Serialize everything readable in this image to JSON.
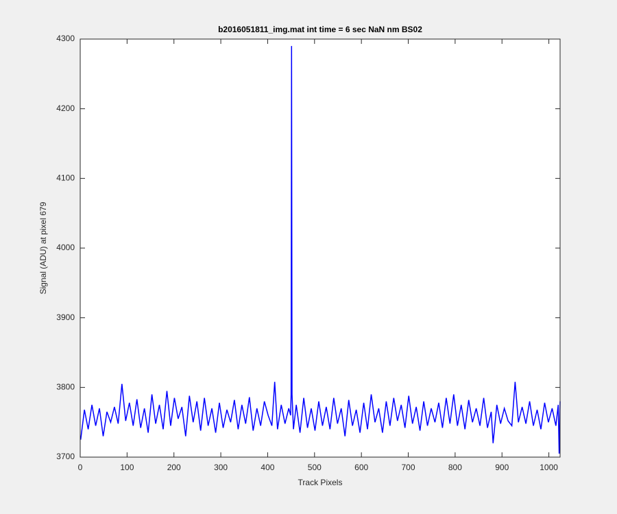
{
  "chart_data": {
    "type": "line",
    "title": "b2016051811_img.mat int time = 6 sec  NaN nm BS02",
    "x_label": "Track Pixels",
    "y_label": "Signal (ADU) at pixel 679",
    "xlim": [
      0,
      1024
    ],
    "ylim": [
      3700,
      4300
    ],
    "xticks": [
      0,
      100,
      200,
      300,
      400,
      500,
      600,
      700,
      800,
      900,
      1000
    ],
    "yticks": [
      3700,
      3800,
      3900,
      4000,
      4100,
      4200,
      4300
    ],
    "grid": false,
    "series": [
      {
        "color": "#0000ff",
        "x": [
          1,
          9,
          17,
          25,
          33,
          41,
          49,
          57,
          65,
          73,
          81,
          89,
          97,
          105,
          113,
          121,
          129,
          137,
          145,
          153,
          161,
          169,
          177,
          185,
          193,
          201,
          209,
          217,
          225,
          233,
          241,
          249,
          257,
          265,
          273,
          281,
          289,
          297,
          305,
          313,
          321,
          329,
          337,
          345,
          353,
          361,
          369,
          377,
          385,
          393,
          401,
          409,
          415,
          421,
          429,
          437,
          445,
          449,
          450,
          451,
          452,
          455,
          461,
          469,
          477,
          485,
          493,
          501,
          509,
          517,
          525,
          533,
          541,
          549,
          557,
          565,
          573,
          581,
          589,
          597,
          605,
          613,
          621,
          629,
          637,
          645,
          653,
          661,
          669,
          677,
          685,
          693,
          701,
          709,
          717,
          725,
          733,
          741,
          749,
          757,
          765,
          773,
          781,
          789,
          797,
          805,
          813,
          821,
          829,
          837,
          845,
          853,
          861,
          869,
          877,
          881,
          889,
          897,
          905,
          913,
          921,
          928,
          935,
          943,
          951,
          959,
          967,
          975,
          983,
          991,
          999,
          1007,
          1015,
          1020,
          1022,
          1024
        ],
        "values": [
          3725,
          3768,
          3740,
          3775,
          3745,
          3770,
          3730,
          3765,
          3750,
          3772,
          3748,
          3805,
          3752,
          3778,
          3745,
          3783,
          3742,
          3770,
          3735,
          3790,
          3748,
          3775,
          3740,
          3795,
          3745,
          3785,
          3755,
          3772,
          3730,
          3788,
          3750,
          3780,
          3738,
          3785,
          3745,
          3770,
          3735,
          3778,
          3742,
          3768,
          3750,
          3782,
          3740,
          3775,
          3748,
          3786,
          3738,
          3770,
          3745,
          3780,
          3760,
          3745,
          3808,
          3740,
          3775,
          3748,
          3770,
          3760,
          3790,
          4290,
          3790,
          3740,
          3775,
          3735,
          3785,
          3742,
          3770,
          3738,
          3780,
          3745,
          3772,
          3740,
          3785,
          3748,
          3770,
          3730,
          3782,
          3745,
          3768,
          3735,
          3778,
          3740,
          3790,
          3750,
          3770,
          3735,
          3780,
          3745,
          3785,
          3752,
          3775,
          3742,
          3788,
          3748,
          3772,
          3738,
          3780,
          3745,
          3770,
          3750,
          3778,
          3742,
          3785,
          3748,
          3790,
          3745,
          3775,
          3740,
          3782,
          3750,
          3770,
          3745,
          3785,
          3742,
          3765,
          3720,
          3775,
          3748,
          3770,
          3752,
          3745,
          3808,
          3750,
          3772,
          3748,
          3780,
          3745,
          3768,
          3740,
          3778,
          3750,
          3770,
          3745,
          3775,
          3705,
          3780
        ]
      }
    ]
  }
}
